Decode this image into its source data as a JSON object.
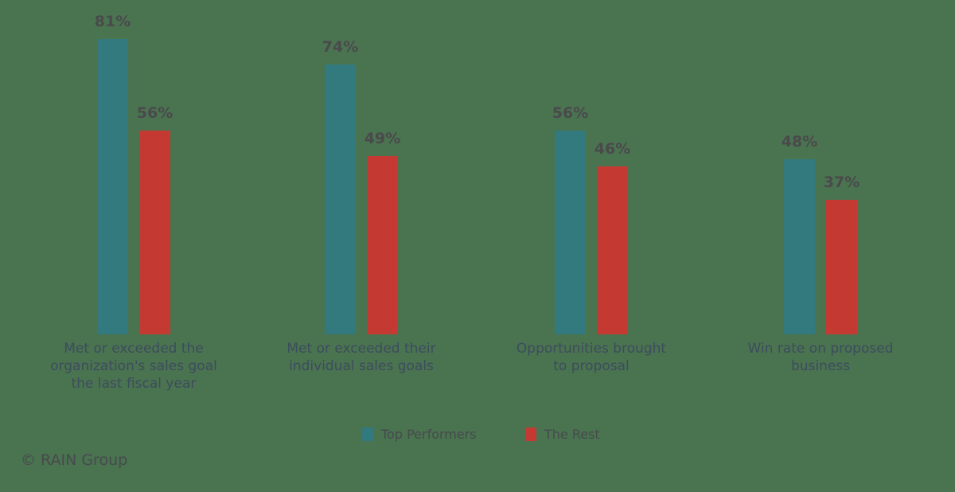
{
  "chart_data": {
    "type": "bar",
    "title": "",
    "xlabel": "",
    "ylabel": "",
    "ylim": [
      0,
      100
    ],
    "grid": false,
    "legend_position": "bottom",
    "categories": [
      "Met or exceeded the organization's sales goal the last fiscal year",
      "Met or exceeded their individual sales goals",
      "Opportunities brought to proposal",
      "Win rate on proposed business"
    ],
    "category_lines": [
      "Met or exceeded the\norganization's sales goal\nthe last fiscal year",
      "Met or exceeded their\nindividual sales goals",
      "Opportunities brought\nto proposal",
      "Win rate on proposed\nbusiness"
    ],
    "series": [
      {
        "name": "Top Performers",
        "color": "#327a7d",
        "values": [
          81,
          74,
          56,
          48
        ],
        "labels": [
          "81%",
          "74%",
          "56%",
          "48%"
        ]
      },
      {
        "name": "The Rest",
        "color": "#c43a33",
        "values": [
          56,
          49,
          46,
          37
        ],
        "labels": [
          "56%",
          "49%",
          "46%",
          "37%"
        ]
      }
    ]
  },
  "legend": {
    "items": [
      {
        "label": "Top Performers",
        "color": "#327a7d"
      },
      {
        "label": "The Rest",
        "color": "#c43a33"
      }
    ]
  },
  "footer": {
    "copyright": "© RAIN Group"
  }
}
